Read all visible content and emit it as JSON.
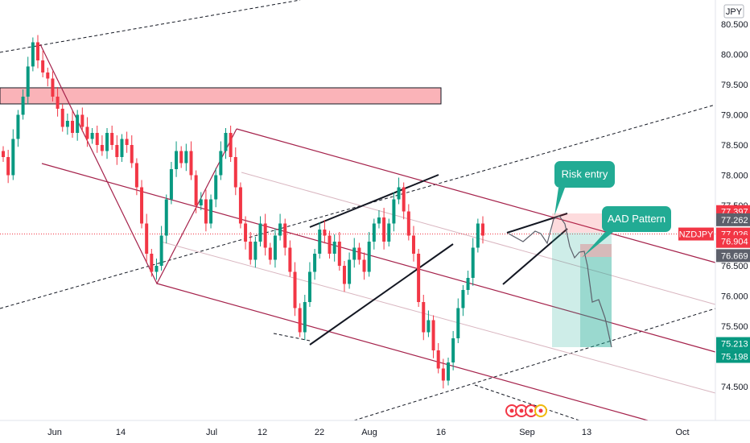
{
  "chart_data": {
    "type": "candlestick",
    "symbol": "NZDJPY",
    "currency": "JPY",
    "y_ticks": [
      "80.500",
      "80.000",
      "79.500",
      "79.000",
      "78.500",
      "78.000",
      "77.500",
      "77.000",
      "76.500",
      "76.000",
      "75.500",
      "75.000",
      "74.500"
    ],
    "y_tick_values": [
      80.5,
      80.0,
      79.5,
      79.0,
      78.5,
      78.0,
      77.5,
      77.0,
      76.5,
      76.0,
      75.5,
      75.0,
      74.5
    ],
    "x_ticks": [
      "Jun",
      "14",
      "Jul",
      "12",
      "22",
      "Aug",
      "16",
      "Sep",
      "13",
      "Oct"
    ],
    "ylim": [
      74.0,
      80.7
    ],
    "price_tags": [
      {
        "label": "77.397",
        "value": 77.397,
        "color": "#f23645"
      },
      {
        "label": "77.262",
        "value": 77.262,
        "color": "#5d606b"
      },
      {
        "label": "NZDJPY",
        "value": 77.026,
        "color": "#f23645"
      },
      {
        "label": "77.026",
        "value": 77.026,
        "color": "#f23645"
      },
      {
        "label": "76.904",
        "value": 76.904,
        "color": "#f23645"
      },
      {
        "label": "76.669",
        "value": 76.669,
        "color": "#5d606b"
      },
      {
        "label": "75.213",
        "value": 75.213,
        "color": "#089981"
      },
      {
        "label": "75.198",
        "value": 75.198,
        "color": "#089981"
      }
    ],
    "annotations": [
      {
        "text": "Risk entry",
        "color": "#22ab94"
      },
      {
        "text": "AAD Pattern",
        "color": "#22ab94"
      }
    ],
    "series": [
      {
        "close": [
          78.3,
          78.0,
          78.6,
          79.0,
          79.3,
          79.8,
          80.2,
          79.9,
          79.7,
          79.6,
          79.3,
          79.1,
          78.8,
          78.9,
          78.7,
          79.0,
          78.8,
          78.6,
          78.7,
          78.5,
          78.4,
          78.7,
          78.5,
          78.3,
          78.6,
          78.5,
          78.2,
          77.8,
          77.2,
          76.7,
          76.4,
          76.5,
          77.0,
          77.6,
          78.1,
          78.4,
          78.2,
          78.4,
          78.0,
          77.5,
          77.6,
          77.2,
          77.6,
          78.0,
          78.4,
          78.7,
          78.3,
          77.8,
          77.2,
          76.9,
          76.6,
          76.9,
          77.2,
          76.8,
          76.6,
          77.0,
          77.2,
          76.8,
          76.4,
          75.8,
          75.4,
          75.9,
          76.4,
          76.7,
          77.1,
          77.0,
          76.7,
          76.9,
          76.5,
          76.2,
          76.6,
          76.8,
          76.6,
          76.4,
          76.9,
          77.2,
          77.3,
          76.9,
          77.2,
          77.6,
          77.8,
          77.4,
          77.0,
          76.7,
          75.9,
          75.4,
          75.6,
          75.1,
          74.8,
          74.6,
          74.9,
          75.3,
          75.8,
          76.1,
          76.3,
          76.8,
          77.2,
          77.0
        ]
      }
    ]
  }
}
